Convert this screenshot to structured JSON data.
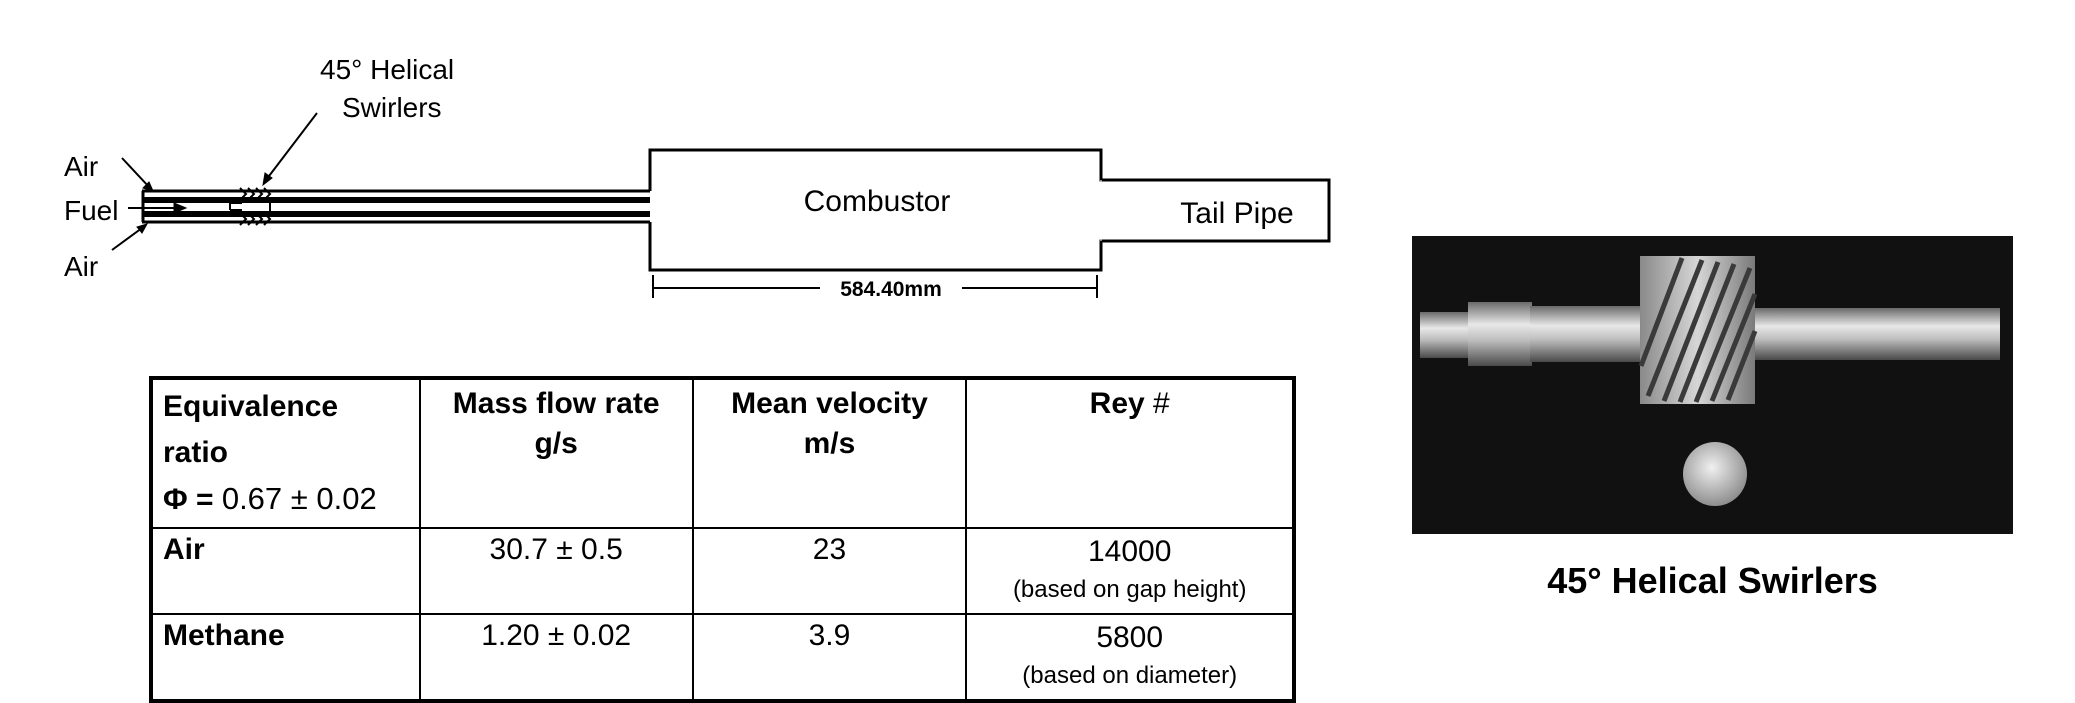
{
  "diagram": {
    "swirler_label_line1": "45° Helical",
    "swirler_label_line2": "Swirlers",
    "air_top": "Air",
    "fuel": "Fuel",
    "air_bottom": "Air",
    "combustor": "Combustor",
    "tail_pipe": "Tail Pipe",
    "dimension": "584.40mm"
  },
  "table": {
    "header": {
      "col1_line1": "Equivalence ratio",
      "col1_phi": "Φ =",
      "col1_value": "0.67 ± 0.02",
      "col2_line1": "Mass flow rate",
      "col2_line2": "g/s",
      "col3_line1": "Mean velocity",
      "col3_line2": "m/s",
      "col4_label": "Rey",
      "col4_hash": "#"
    },
    "rows": [
      {
        "label": "Air",
        "mass_flow": "30.7 ± 0.5",
        "velocity": "23",
        "rey": "14000",
        "rey_note": "(based on gap height)"
      },
      {
        "label": "Methane",
        "mass_flow": "1.20 ± 0.02",
        "velocity": "3.9",
        "rey": "5800",
        "rey_note": "(based on diameter)"
      }
    ]
  },
  "photo": {
    "caption": "45° Helical Swirlers"
  }
}
